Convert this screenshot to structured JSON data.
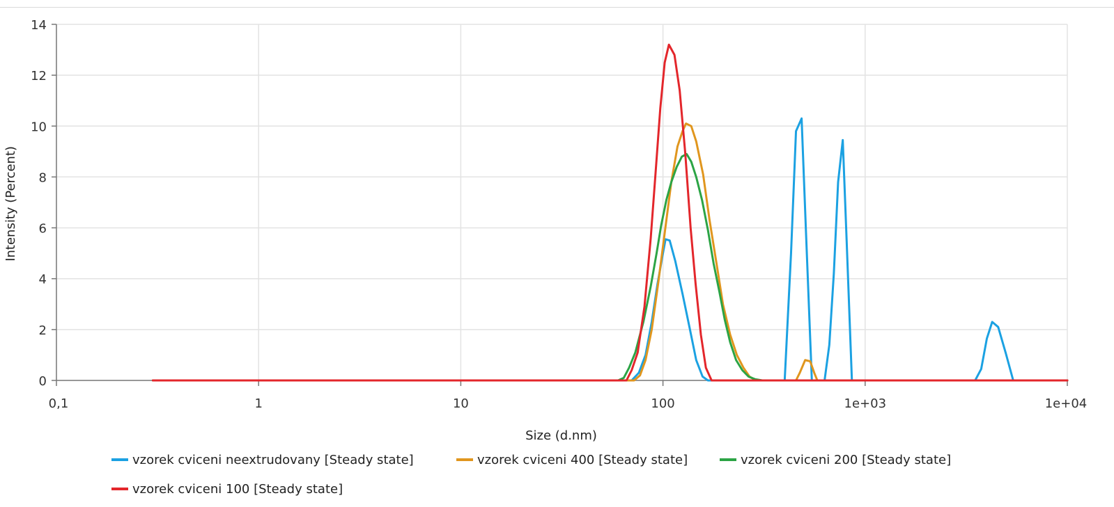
{
  "chart_data": {
    "type": "line",
    "xlabel": "Size (d.nm)",
    "ylabel": "Intensity (Percent)",
    "x_scale": "log",
    "xlim": [
      0.1,
      10000
    ],
    "ylim": [
      0,
      14
    ],
    "x_ticks": [
      0.1,
      1,
      10,
      100,
      1000,
      10000
    ],
    "x_tick_labels": [
      "0,1",
      "1",
      "10",
      "100",
      "1e+03",
      "1e+04"
    ],
    "y_ticks": [
      0,
      2,
      4,
      6,
      8,
      10,
      12,
      14
    ],
    "y_tick_labels": [
      "0",
      "2",
      "4",
      "6",
      "8",
      "10",
      "12",
      "14"
    ],
    "grid": true,
    "legend_position": "bottom-left",
    "series": [
      {
        "name": "vzorek cviceni neextrudovany [Steady state]",
        "color": "#1ba1e2",
        "points": [
          [
            0.3,
            0
          ],
          [
            70,
            0
          ],
          [
            76,
            0.3
          ],
          [
            82,
            1.0
          ],
          [
            88,
            2.3
          ],
          [
            94,
            3.8
          ],
          [
            100,
            5.0
          ],
          [
            103,
            5.55
          ],
          [
            108,
            5.5
          ],
          [
            115,
            4.7
          ],
          [
            125,
            3.4
          ],
          [
            136,
            2.0
          ],
          [
            146,
            0.8
          ],
          [
            157,
            0.15
          ],
          [
            167,
            0
          ],
          [
            400,
            0
          ],
          [
            430,
            5.0
          ],
          [
            455,
            9.8
          ],
          [
            485,
            10.3
          ],
          [
            510,
            5.8
          ],
          [
            545,
            0
          ],
          [
            630,
            0
          ],
          [
            665,
            1.4
          ],
          [
            700,
            4.2
          ],
          [
            735,
            7.8
          ],
          [
            775,
            9.45
          ],
          [
            810,
            5.5
          ],
          [
            860,
            0
          ],
          [
            3500,
            0
          ],
          [
            3750,
            0.45
          ],
          [
            4000,
            1.65
          ],
          [
            4250,
            2.3
          ],
          [
            4550,
            2.1
          ],
          [
            4950,
            1.1
          ],
          [
            5400,
            0
          ],
          [
            10000,
            0
          ]
        ]
      },
      {
        "name": "vzorek cviceni 400 [Steady state]",
        "color": "#e0961e",
        "points": [
          [
            0.3,
            0
          ],
          [
            72,
            0
          ],
          [
            77,
            0.2
          ],
          [
            82,
            0.8
          ],
          [
            88,
            2.0
          ],
          [
            95,
            3.9
          ],
          [
            102,
            5.8
          ],
          [
            110,
            7.8
          ],
          [
            118,
            9.2
          ],
          [
            125,
            9.8
          ],
          [
            130,
            10.1
          ],
          [
            138,
            10.0
          ],
          [
            146,
            9.4
          ],
          [
            158,
            8.1
          ],
          [
            170,
            6.3
          ],
          [
            184,
            4.6
          ],
          [
            198,
            3.0
          ],
          [
            215,
            1.8
          ],
          [
            232,
            1.0
          ],
          [
            250,
            0.5
          ],
          [
            268,
            0.15
          ],
          [
            290,
            0
          ],
          [
            455,
            0
          ],
          [
            475,
            0.3
          ],
          [
            505,
            0.8
          ],
          [
            535,
            0.75
          ],
          [
            560,
            0.3
          ],
          [
            580,
            0
          ],
          [
            10000,
            0
          ]
        ]
      },
      {
        "name": "vzorek cviceni 200 [Steady state]",
        "color": "#2ca445",
        "points": [
          [
            0.3,
            0
          ],
          [
            60,
            0
          ],
          [
            64,
            0.1
          ],
          [
            68,
            0.5
          ],
          [
            73,
            1.1
          ],
          [
            80,
            2.3
          ],
          [
            87,
            3.7
          ],
          [
            93,
            5.0
          ],
          [
            98,
            6.1
          ],
          [
            104,
            7.1
          ],
          [
            110,
            7.8
          ],
          [
            117,
            8.4
          ],
          [
            124,
            8.8
          ],
          [
            131,
            8.9
          ],
          [
            138,
            8.6
          ],
          [
            146,
            8.0
          ],
          [
            156,
            7.1
          ],
          [
            167,
            5.9
          ],
          [
            178,
            4.6
          ],
          [
            190,
            3.5
          ],
          [
            202,
            2.4
          ],
          [
            215,
            1.5
          ],
          [
            230,
            0.8
          ],
          [
            247,
            0.4
          ],
          [
            265,
            0.15
          ],
          [
            285,
            0.05
          ],
          [
            310,
            0
          ],
          [
            10000,
            0
          ]
        ]
      },
      {
        "name": "vzorek cviceni 100 [Steady state]",
        "color": "#e3262b",
        "points": [
          [
            0.3,
            0
          ],
          [
            66,
            0
          ],
          [
            70,
            0.4
          ],
          [
            75,
            1.1
          ],
          [
            81,
            2.9
          ],
          [
            87,
            5.6
          ],
          [
            92,
            8.2
          ],
          [
            97,
            10.7
          ],
          [
            102,
            12.5
          ],
          [
            107,
            13.2
          ],
          [
            114,
            12.8
          ],
          [
            121,
            11.4
          ],
          [
            129,
            8.9
          ],
          [
            137,
            6.0
          ],
          [
            145,
            3.8
          ],
          [
            154,
            1.8
          ],
          [
            163,
            0.5
          ],
          [
            174,
            0
          ],
          [
            10000,
            0
          ]
        ]
      }
    ]
  }
}
